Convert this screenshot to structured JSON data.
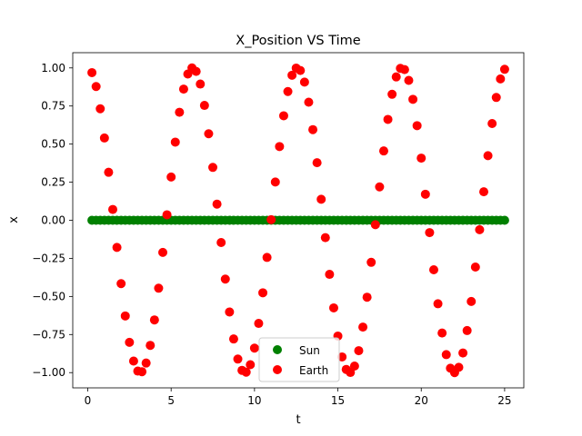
{
  "chart_data": {
    "type": "scatter",
    "title": "X_Position VS Time",
    "xlabel": "t",
    "ylabel": "x",
    "xlim": [
      -0.9,
      26.15
    ],
    "ylim": [
      -1.1,
      1.1
    ],
    "x_ticks": [
      0,
      5,
      10,
      15,
      20,
      25
    ],
    "x_tick_labels": [
      "0",
      "5",
      "10",
      "15",
      "20",
      "25"
    ],
    "y_ticks": [
      1.0,
      0.75,
      0.5,
      0.25,
      0.0,
      -0.25,
      -0.5,
      -0.75,
      -1.0
    ],
    "y_tick_labels": [
      "1.00",
      "0.75",
      "0.50",
      "0.25",
      "0.00",
      "−0.25",
      "−0.50",
      "−0.75",
      "−1.00"
    ],
    "grid": false,
    "legend_position": "bottom-center",
    "series": [
      {
        "name": "Sun",
        "color": "#008000",
        "x_start": 0.25,
        "x_step": 0.25,
        "count": 100,
        "y_constant": 0.0
      },
      {
        "name": "Earth",
        "color": "#ff0000",
        "x": [
          0.25,
          0.5,
          0.75,
          1.0,
          1.25,
          1.5,
          1.75,
          2.0,
          2.25,
          2.5,
          2.75,
          3.0,
          3.25,
          3.5,
          3.75,
          4.0,
          4.25,
          4.5,
          4.75,
          5.0,
          5.25,
          5.5,
          5.75,
          6.0,
          6.25,
          6.5,
          6.75,
          7.0,
          7.25,
          7.5,
          7.75,
          8.0,
          8.25,
          8.5,
          8.75,
          9.0,
          9.25,
          9.5,
          9.75,
          10.0,
          10.25,
          10.5,
          10.75,
          11.0,
          11.25,
          11.5,
          11.75,
          12.0,
          12.25,
          12.5,
          12.75,
          13.0,
          13.25,
          13.5,
          13.75,
          14.0,
          14.25,
          14.5,
          14.75,
          15.0,
          15.25,
          15.5,
          15.75,
          16.0,
          16.25,
          16.5,
          16.75,
          17.0,
          17.25,
          17.5,
          17.75,
          18.0,
          18.25,
          18.5,
          18.75,
          19.0,
          19.25,
          19.5,
          19.75,
          20.0,
          20.25,
          20.5,
          20.75,
          21.0,
          21.25,
          21.5,
          21.75,
          22.0,
          22.25,
          22.5,
          22.75,
          23.0,
          23.25,
          23.5,
          23.75,
          24.0,
          24.25,
          24.5,
          24.75,
          25.0
        ],
        "y": [
          0.969,
          0.878,
          0.732,
          0.54,
          0.315,
          0.071,
          -0.178,
          -0.416,
          -0.628,
          -0.801,
          -0.924,
          -0.99,
          -0.994,
          -0.937,
          -0.821,
          -0.654,
          -0.446,
          -0.211,
          0.036,
          0.284,
          0.513,
          0.709,
          0.861,
          0.96,
          1.0,
          0.977,
          0.894,
          0.754,
          0.568,
          0.347,
          0.106,
          -0.146,
          -0.386,
          -0.602,
          -0.779,
          -0.911,
          -0.985,
          -0.997,
          -0.948,
          -0.839,
          -0.677,
          -0.476,
          -0.244,
          0.004,
          0.251,
          0.484,
          0.686,
          0.845,
          0.952,
          0.999,
          0.983,
          0.907,
          0.775,
          0.595,
          0.378,
          0.138,
          -0.114,
          -0.355,
          -0.575,
          -0.76,
          -0.897,
          -0.979,
          -0.999,
          -0.957,
          -0.856,
          -0.701,
          -0.505,
          -0.276,
          -0.029,
          0.219,
          0.455,
          0.662,
          0.827,
          0.941,
          0.997,
          0.989,
          0.918,
          0.794,
          0.621,
          0.408,
          0.171,
          -0.081,
          -0.325,
          -0.548,
          -0.74,
          -0.882,
          -0.971,
          -1.0,
          -0.965,
          -0.871,
          -0.724,
          -0.533,
          -0.307,
          -0.062,
          0.187,
          0.424,
          0.635,
          0.806,
          0.928,
          0.991
        ]
      }
    ]
  }
}
